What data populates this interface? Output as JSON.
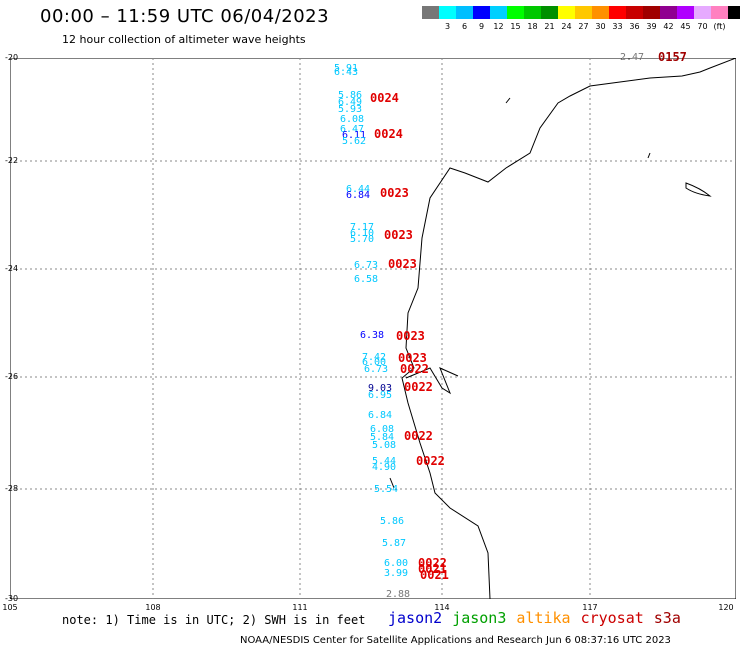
{
  "header": {
    "title": "00:00 – 11:59 UTC 06/04/2023",
    "subtitle": "12 hour collection of altimeter wave heights"
  },
  "scale": {
    "colors": [
      "#777777",
      "#00ffff",
      "#00bfff",
      "#0000ff",
      "#00d0ff",
      "#00ff00",
      "#00c800",
      "#009000",
      "#ffff00",
      "#ffc800",
      "#ff9000",
      "#ff0000",
      "#c80000",
      "#a00000",
      "#900090",
      "#b000ff",
      "#e6aaff",
      "#ff80c0",
      "#000000"
    ],
    "ticks": [
      "3",
      "6",
      "9",
      "12",
      "15",
      "18",
      "21",
      "24",
      "27",
      "30",
      "33",
      "36",
      "39",
      "42",
      "45",
      "70"
    ],
    "unit": "(ft)"
  },
  "axes": {
    "lat_labels": [
      "-20",
      "-22",
      "-24",
      "-26",
      "-28",
      "-30"
    ],
    "lon_labels": [
      "105",
      "108",
      "111",
      "114",
      "117",
      "120"
    ]
  },
  "swh_values": [
    {
      "v": "5.91",
      "c": "#00c8ff"
    },
    {
      "v": "6.43",
      "c": "#00c8ff"
    },
    {
      "v": "5.86",
      "c": "#00c8ff"
    },
    {
      "v": "6.49",
      "c": "#00c8ff"
    },
    {
      "v": "5.93",
      "c": "#00c8ff"
    },
    {
      "v": "6.08",
      "c": "#00c8ff"
    },
    {
      "v": "6.47",
      "c": "#00c8ff"
    },
    {
      "v": "6.11",
      "c": "#0000ff"
    },
    {
      "v": "5.62",
      "c": "#00c8ff"
    },
    {
      "v": "6.44",
      "c": "#00c8ff"
    },
    {
      "v": "6.84",
      "c": "#0000ff"
    },
    {
      "v": "7.17",
      "c": "#00c8ff"
    },
    {
      "v": "6.10",
      "c": "#00c8ff"
    },
    {
      "v": "5.70",
      "c": "#00c8ff"
    },
    {
      "v": "6.73",
      "c": "#00c8ff"
    },
    {
      "v": "6.58",
      "c": "#00c8ff"
    },
    {
      "v": "6.38",
      "c": "#0000ff"
    },
    {
      "v": "7.42",
      "c": "#00c8ff"
    },
    {
      "v": "6.00",
      "c": "#00c8ff"
    },
    {
      "v": "6.73",
      "c": "#00c8ff"
    },
    {
      "v": "9.03",
      "c": "#000090"
    },
    {
      "v": "6.95",
      "c": "#00c8ff"
    },
    {
      "v": "6.84",
      "c": "#00c8ff"
    },
    {
      "v": "6.08",
      "c": "#00c8ff"
    },
    {
      "v": "5.84",
      "c": "#00c8ff"
    },
    {
      "v": "5.08",
      "c": "#00c8ff"
    },
    {
      "v": "5.44",
      "c": "#00c8ff"
    },
    {
      "v": "4.90",
      "c": "#00c8ff"
    },
    {
      "v": "5.54",
      "c": "#00c8ff"
    },
    {
      "v": "5.86",
      "c": "#00c8ff"
    },
    {
      "v": "5.87",
      "c": "#00c8ff"
    },
    {
      "v": "6.00",
      "c": "#00c8ff"
    },
    {
      "v": "3.99",
      "c": "#00c8ff"
    },
    {
      "v": "2.88",
      "c": "#777777"
    },
    {
      "v": "2.47",
      "c": "#777777"
    }
  ],
  "time_labels": [
    {
      "v": "0024",
      "c": "#e00000"
    },
    {
      "v": "0024",
      "c": "#e00000"
    },
    {
      "v": "0023",
      "c": "#e00000"
    },
    {
      "v": "0023",
      "c": "#e00000"
    },
    {
      "v": "0023",
      "c": "#e00000"
    },
    {
      "v": "0023",
      "c": "#e00000"
    },
    {
      "v": "0023",
      "c": "#e00000"
    },
    {
      "v": "0022",
      "c": "#e00000"
    },
    {
      "v": "0022",
      "c": "#e00000"
    },
    {
      "v": "0022",
      "c": "#e00000"
    },
    {
      "v": "0022",
      "c": "#e00000"
    },
    {
      "v": "0022",
      "c": "#e00000"
    },
    {
      "v": "0021",
      "c": "#e00000"
    },
    {
      "v": "0021",
      "c": "#e00000"
    },
    {
      "v": "0157",
      "c": "#a00000"
    }
  ],
  "note": "note: 1) Time is in UTC; 2) SWH is in feet",
  "satellites": [
    {
      "name": "jason2",
      "color": "#0000cc"
    },
    {
      "name": "jason3",
      "color": "#00a000"
    },
    {
      "name": "altika",
      "color": "#ff9000"
    },
    {
      "name": "cryosat",
      "color": "#cc0000"
    },
    {
      "name": "s3a",
      "color": "#a00000"
    }
  ],
  "footer": "NOAA/NESDIS Center for Satellite Applications and Research   Jun  6 08:37:16 UTC 2023"
}
